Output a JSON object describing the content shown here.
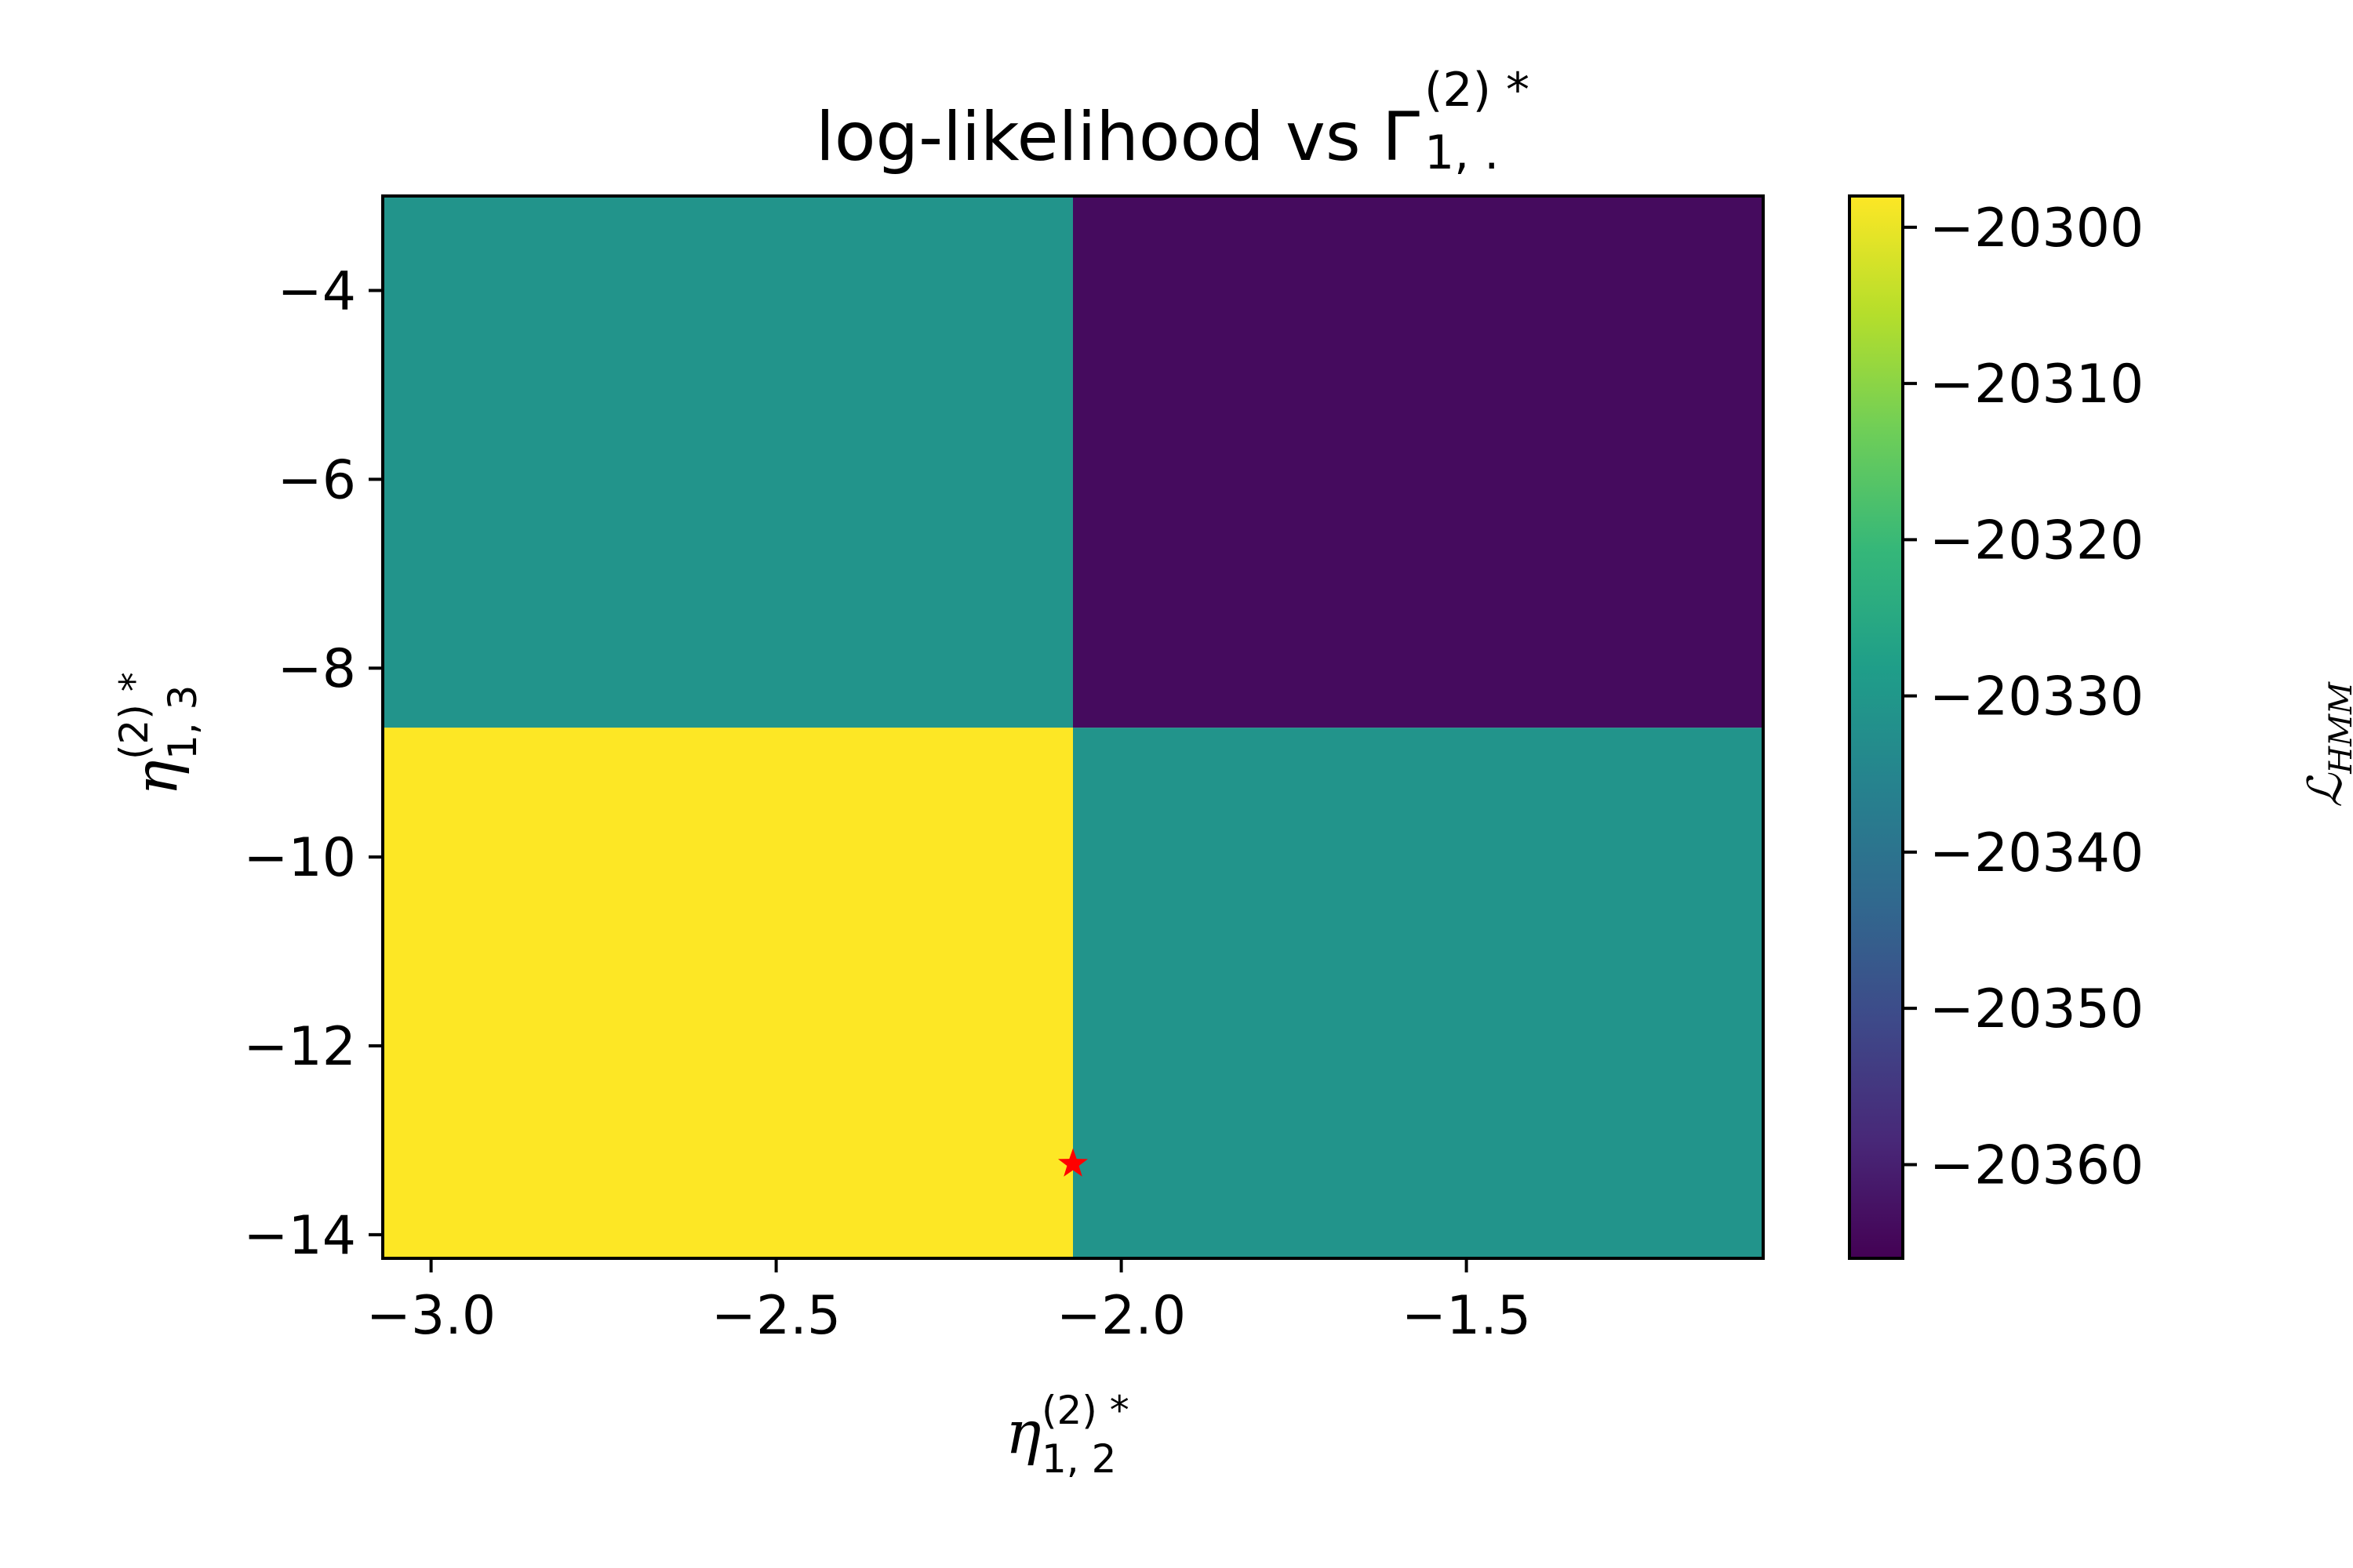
{
  "title": {
    "text": "log-likelihood vs ",
    "symbol": "Γ",
    "sup": "(2) *",
    "sub": "1, ."
  },
  "chart_data": {
    "type": "heatmap",
    "x_edges": [
      -3.07,
      -2.07,
      -1.07
    ],
    "y_edges": [
      -14.25,
      -8.63,
      -3.0
    ],
    "xlim": [
      -3.07,
      -1.07
    ],
    "ylim": [
      -14.25,
      -3.0
    ],
    "z": [
      [
        -20298,
        -20331
      ],
      [
        -20331,
        -20364
      ]
    ],
    "z_note": "",
    "x_ticks": [
      -3.0,
      -2.5,
      -2.0,
      -1.5
    ],
    "x_tick_labels": [
      "−3.0",
      "−2.5",
      "−2.0",
      "−1.5"
    ],
    "y_ticks": [
      -4,
      -6,
      -8,
      -10,
      -12,
      -14
    ],
    "y_tick_labels": [
      "−4",
      "−6",
      "−8",
      "−10",
      "−12",
      "−14"
    ],
    "xlabel": {
      "symbol": "η",
      "sup": "(2) *",
      "sub": "1, 2"
    },
    "ylabel": {
      "symbol": "η",
      "sup": "(2) *",
      "sub": "1, 3"
    },
    "colorbar": {
      "label": "ℒ",
      "label_sub": "HMM",
      "range": [
        -20366,
        -20298
      ],
      "ticks": [
        -20300,
        -20310,
        -20320,
        -20330,
        -20340,
        -20350,
        -20360
      ],
      "tick_labels": [
        "−20300",
        "−20310",
        "−20320",
        "−20330",
        "−20340",
        "−20350",
        "−20360"
      ],
      "colormap": "viridis"
    },
    "marker": {
      "x": -2.07,
      "y": -13.25,
      "shape": "star",
      "color": "#ff0000"
    },
    "grid": false
  }
}
